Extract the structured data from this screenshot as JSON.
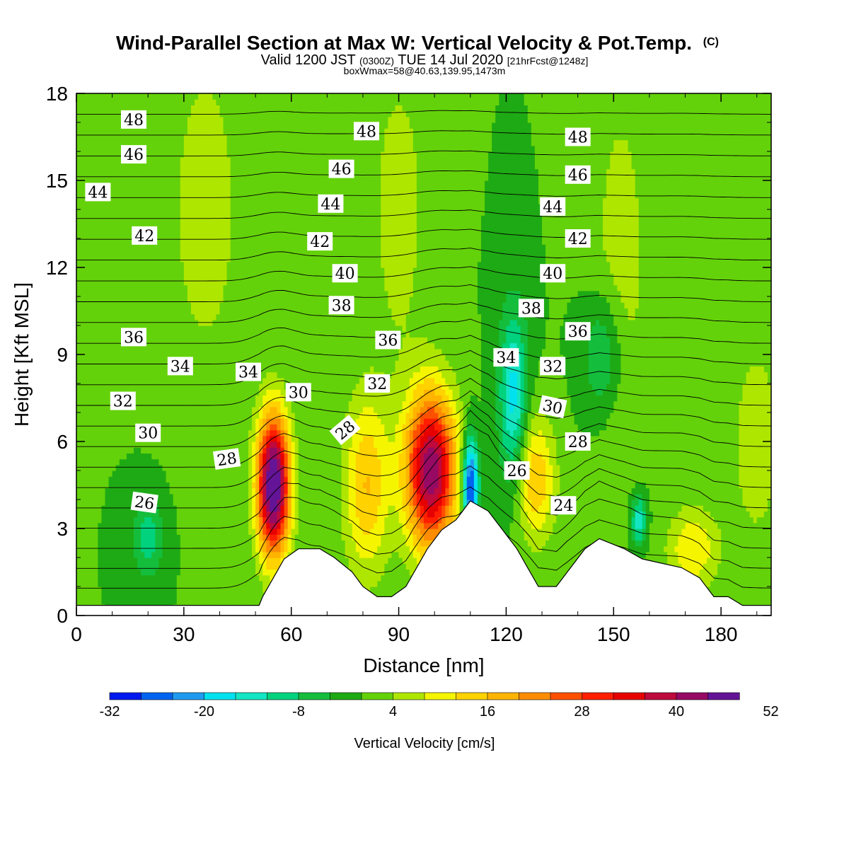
{
  "header": {
    "title": "Wind-Parallel Section at Max W: Vertical Velocity & Pot.Temp.",
    "title_mark": "(C)",
    "valid_prefix": "Valid 1200 JST",
    "valid_z": "(0300Z)",
    "valid_date": "TUE 14 Jul 2020",
    "valid_fcst": "[21hrFcst@1248z]",
    "box": "boxWmax=58@40.63,139.95,1473m"
  },
  "chart_data": {
    "type": "heatmap",
    "xlabel": "Distance [nm]",
    "ylabel": "Height [Kft MSL]",
    "xlim": [
      0,
      194
    ],
    "ylim": [
      0,
      18
    ],
    "x_ticks": [
      "0",
      "30",
      "60",
      "90",
      "120",
      "150",
      "180"
    ],
    "y_ticks": [
      "0",
      "3",
      "6",
      "9",
      "12",
      "15",
      "18"
    ],
    "colorbar": {
      "label": "Vertical Velocity [cm/s]",
      "ticks": [
        "-32",
        "-20",
        "-8",
        "4",
        "16",
        "28",
        "40",
        "52"
      ],
      "levels_min": -32,
      "levels_step": 4,
      "colors": [
        "#0019f0",
        "#0064f0",
        "#1e9bf0",
        "#00e1f0",
        "#14e6c3",
        "#00d27d",
        "#14be3c",
        "#1eaa14",
        "#64d20a",
        "#afe600",
        "#f5f500",
        "#ffd200",
        "#ffb400",
        "#ff8c00",
        "#ff5000",
        "#ff1e00",
        "#e60000",
        "#be0a3c",
        "#960a64",
        "#641496"
      ]
    },
    "background_w": 0,
    "updrafts": [
      {
        "x": 55,
        "y": 4.5,
        "peak": 52,
        "sx": 3.2,
        "sy": 1.7
      },
      {
        "x": 81,
        "y": 4.5,
        "peak": 16,
        "sx": 4.5,
        "sy": 2.2
      },
      {
        "x": 99,
        "y": 5.0,
        "peak": 44,
        "sx": 5.0,
        "sy": 1.9
      },
      {
        "x": 128,
        "y": 4.7,
        "peak": 16,
        "sx": 4.0,
        "sy": 1.5
      },
      {
        "x": 172,
        "y": 2.3,
        "peak": 12,
        "sx": 5.0,
        "sy": 1.0
      },
      {
        "x": 36,
        "y": 14.0,
        "peak": 6,
        "sx": 8.0,
        "sy": 4.5
      },
      {
        "x": 90,
        "y": 14.0,
        "peak": 6,
        "sx": 6.0,
        "sy": 4.0
      },
      {
        "x": 152,
        "y": 12.0,
        "peak": 6,
        "sx": 6.0,
        "sy": 5.0
      },
      {
        "x": 190,
        "y": 6.0,
        "peak": 6,
        "sx": 6.0,
        "sy": 3.0
      }
    ],
    "downdrafts": [
      {
        "x": 110,
        "y": 4.5,
        "peak": -32,
        "sx": 1.6,
        "sy": 1.2
      },
      {
        "x": 122,
        "y": 7.5,
        "peak": -18,
        "sx": 2.8,
        "sy": 2.2
      },
      {
        "x": 147,
        "y": 9.0,
        "peak": -10,
        "sx": 4.0,
        "sy": 1.5
      },
      {
        "x": 20,
        "y": 2.7,
        "peak": -10,
        "sx": 3.0,
        "sy": 1.0
      },
      {
        "x": 157,
        "y": 3.3,
        "peak": -16,
        "sx": 1.5,
        "sy": 0.6
      }
    ],
    "terrain": [
      [
        0,
        0.35
      ],
      [
        51,
        0.35
      ],
      [
        52,
        0.65
      ],
      [
        55,
        1.3
      ],
      [
        58,
        1.95
      ],
      [
        62,
        2.3
      ],
      [
        68,
        2.3
      ],
      [
        72,
        2.0
      ],
      [
        77,
        1.5
      ],
      [
        80,
        1.0
      ],
      [
        84,
        0.65
      ],
      [
        88,
        0.65
      ],
      [
        92,
        1.0
      ],
      [
        95,
        1.65
      ],
      [
        98,
        2.3
      ],
      [
        102,
        2.95
      ],
      [
        106,
        3.3
      ],
      [
        110,
        3.95
      ],
      [
        115,
        3.6
      ],
      [
        119,
        2.95
      ],
      [
        123,
        2.3
      ],
      [
        126,
        1.65
      ],
      [
        129,
        1.0
      ],
      [
        134,
        1.0
      ],
      [
        138,
        1.65
      ],
      [
        142,
        2.3
      ],
      [
        146,
        2.65
      ],
      [
        153,
        2.3
      ],
      [
        158,
        1.95
      ],
      [
        169,
        1.65
      ],
      [
        174,
        1.3
      ],
      [
        178,
        0.65
      ],
      [
        182,
        0.65
      ],
      [
        186,
        0.35
      ],
      [
        194,
        0.35
      ]
    ],
    "theta_levels": [
      24,
      25,
      26,
      27,
      28,
      29,
      30,
      31,
      32,
      33,
      34,
      35,
      36,
      37,
      38,
      39,
      40,
      41,
      42,
      43,
      44,
      45,
      46,
      47,
      48,
      49
    ],
    "contour_labels": [
      {
        "text": "48",
        "x": 16,
        "y": 17.1,
        "rot": 0
      },
      {
        "text": "46",
        "x": 16,
        "y": 15.9,
        "rot": 0
      },
      {
        "text": "44",
        "x": 6,
        "y": 14.6,
        "rot": 0
      },
      {
        "text": "42",
        "x": 19,
        "y": 13.1,
        "rot": 0
      },
      {
        "text": "36",
        "x": 16,
        "y": 9.6,
        "rot": 0
      },
      {
        "text": "34",
        "x": 29,
        "y": 8.6,
        "rot": 0
      },
      {
        "text": "32",
        "x": 13,
        "y": 7.4,
        "rot": 0
      },
      {
        "text": "30",
        "x": 20,
        "y": 6.3,
        "rot": 0
      },
      {
        "text": "26",
        "x": 19,
        "y": 3.9,
        "rot": 8
      },
      {
        "text": "28",
        "x": 42,
        "y": 5.4,
        "rot": -8
      },
      {
        "text": "34",
        "x": 48,
        "y": 8.4,
        "rot": 0
      },
      {
        "text": "30",
        "x": 62,
        "y": 7.7,
        "rot": 0
      },
      {
        "text": "28",
        "x": 75,
        "y": 6.4,
        "rot": -40
      },
      {
        "text": "32",
        "x": 84,
        "y": 8.0,
        "rot": 0
      },
      {
        "text": "36",
        "x": 87,
        "y": 9.5,
        "rot": 0
      },
      {
        "text": "38",
        "x": 74,
        "y": 10.7,
        "rot": 0
      },
      {
        "text": "40",
        "x": 75,
        "y": 11.8,
        "rot": 0
      },
      {
        "text": "42",
        "x": 68,
        "y": 12.9,
        "rot": 0
      },
      {
        "text": "44",
        "x": 71,
        "y": 14.2,
        "rot": 0
      },
      {
        "text": "46",
        "x": 74,
        "y": 15.4,
        "rot": 0
      },
      {
        "text": "48",
        "x": 81,
        "y": 16.7,
        "rot": 0
      },
      {
        "text": "48",
        "x": 140,
        "y": 16.5,
        "rot": 0
      },
      {
        "text": "46",
        "x": 140,
        "y": 15.2,
        "rot": 0
      },
      {
        "text": "44",
        "x": 133,
        "y": 14.1,
        "rot": 0
      },
      {
        "text": "42",
        "x": 140,
        "y": 13.0,
        "rot": 0
      },
      {
        "text": "40",
        "x": 133,
        "y": 11.8,
        "rot": 0
      },
      {
        "text": "38",
        "x": 127,
        "y": 10.6,
        "rot": 0
      },
      {
        "text": "36",
        "x": 140,
        "y": 9.8,
        "rot": 0
      },
      {
        "text": "34",
        "x": 120,
        "y": 8.9,
        "rot": 0
      },
      {
        "text": "32",
        "x": 133,
        "y": 8.6,
        "rot": 0
      },
      {
        "text": "30",
        "x": 133,
        "y": 7.2,
        "rot": 12
      },
      {
        "text": "28",
        "x": 140,
        "y": 6.0,
        "rot": 0
      },
      {
        "text": "26",
        "x": 123,
        "y": 5.0,
        "rot": 0
      },
      {
        "text": "24",
        "x": 136,
        "y": 3.8,
        "rot": 0
      }
    ]
  }
}
